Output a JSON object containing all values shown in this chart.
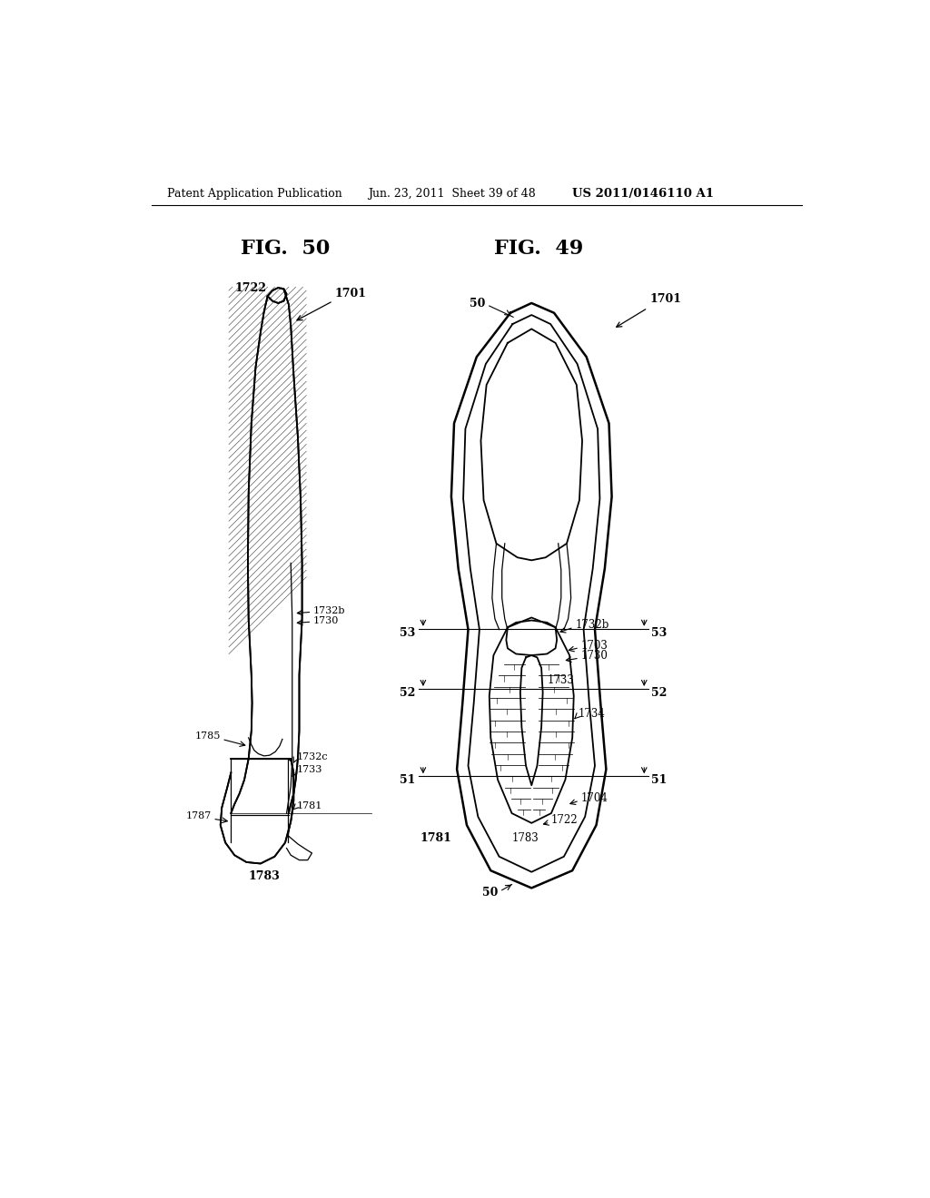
{
  "bg_color": "#ffffff",
  "header_left": "Patent Application Publication",
  "header_mid": "Jun. 23, 2011  Sheet 39 of 48",
  "header_right": "US 2011/0146110 A1",
  "fig50_label": "FIG.  50",
  "fig49_label": "FIG.  49"
}
